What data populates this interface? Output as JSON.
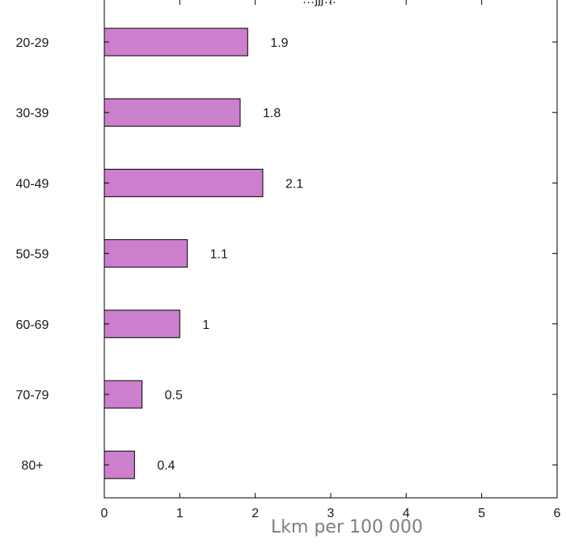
{
  "chart_data": {
    "type": "bar",
    "orientation": "horizontal",
    "categories": [
      "20-29",
      "30-39",
      "40-49",
      "50-59",
      "60-69",
      "70-79",
      "80+"
    ],
    "values": [
      1.9,
      1.8,
      2.1,
      1.1,
      1,
      0.5,
      0.4
    ],
    "data_labels": [
      "1.9",
      "1.8",
      "2.1",
      "1.1",
      "1",
      "0.5",
      "0.4"
    ],
    "xlabel": "Lkm per 100 000",
    "xlim": [
      0,
      6
    ],
    "x_ticks": [
      0,
      1,
      2,
      3,
      4,
      5,
      6
    ],
    "grid": false,
    "bar_color": "#cc7fcc",
    "title_partial": "…jjj…"
  }
}
